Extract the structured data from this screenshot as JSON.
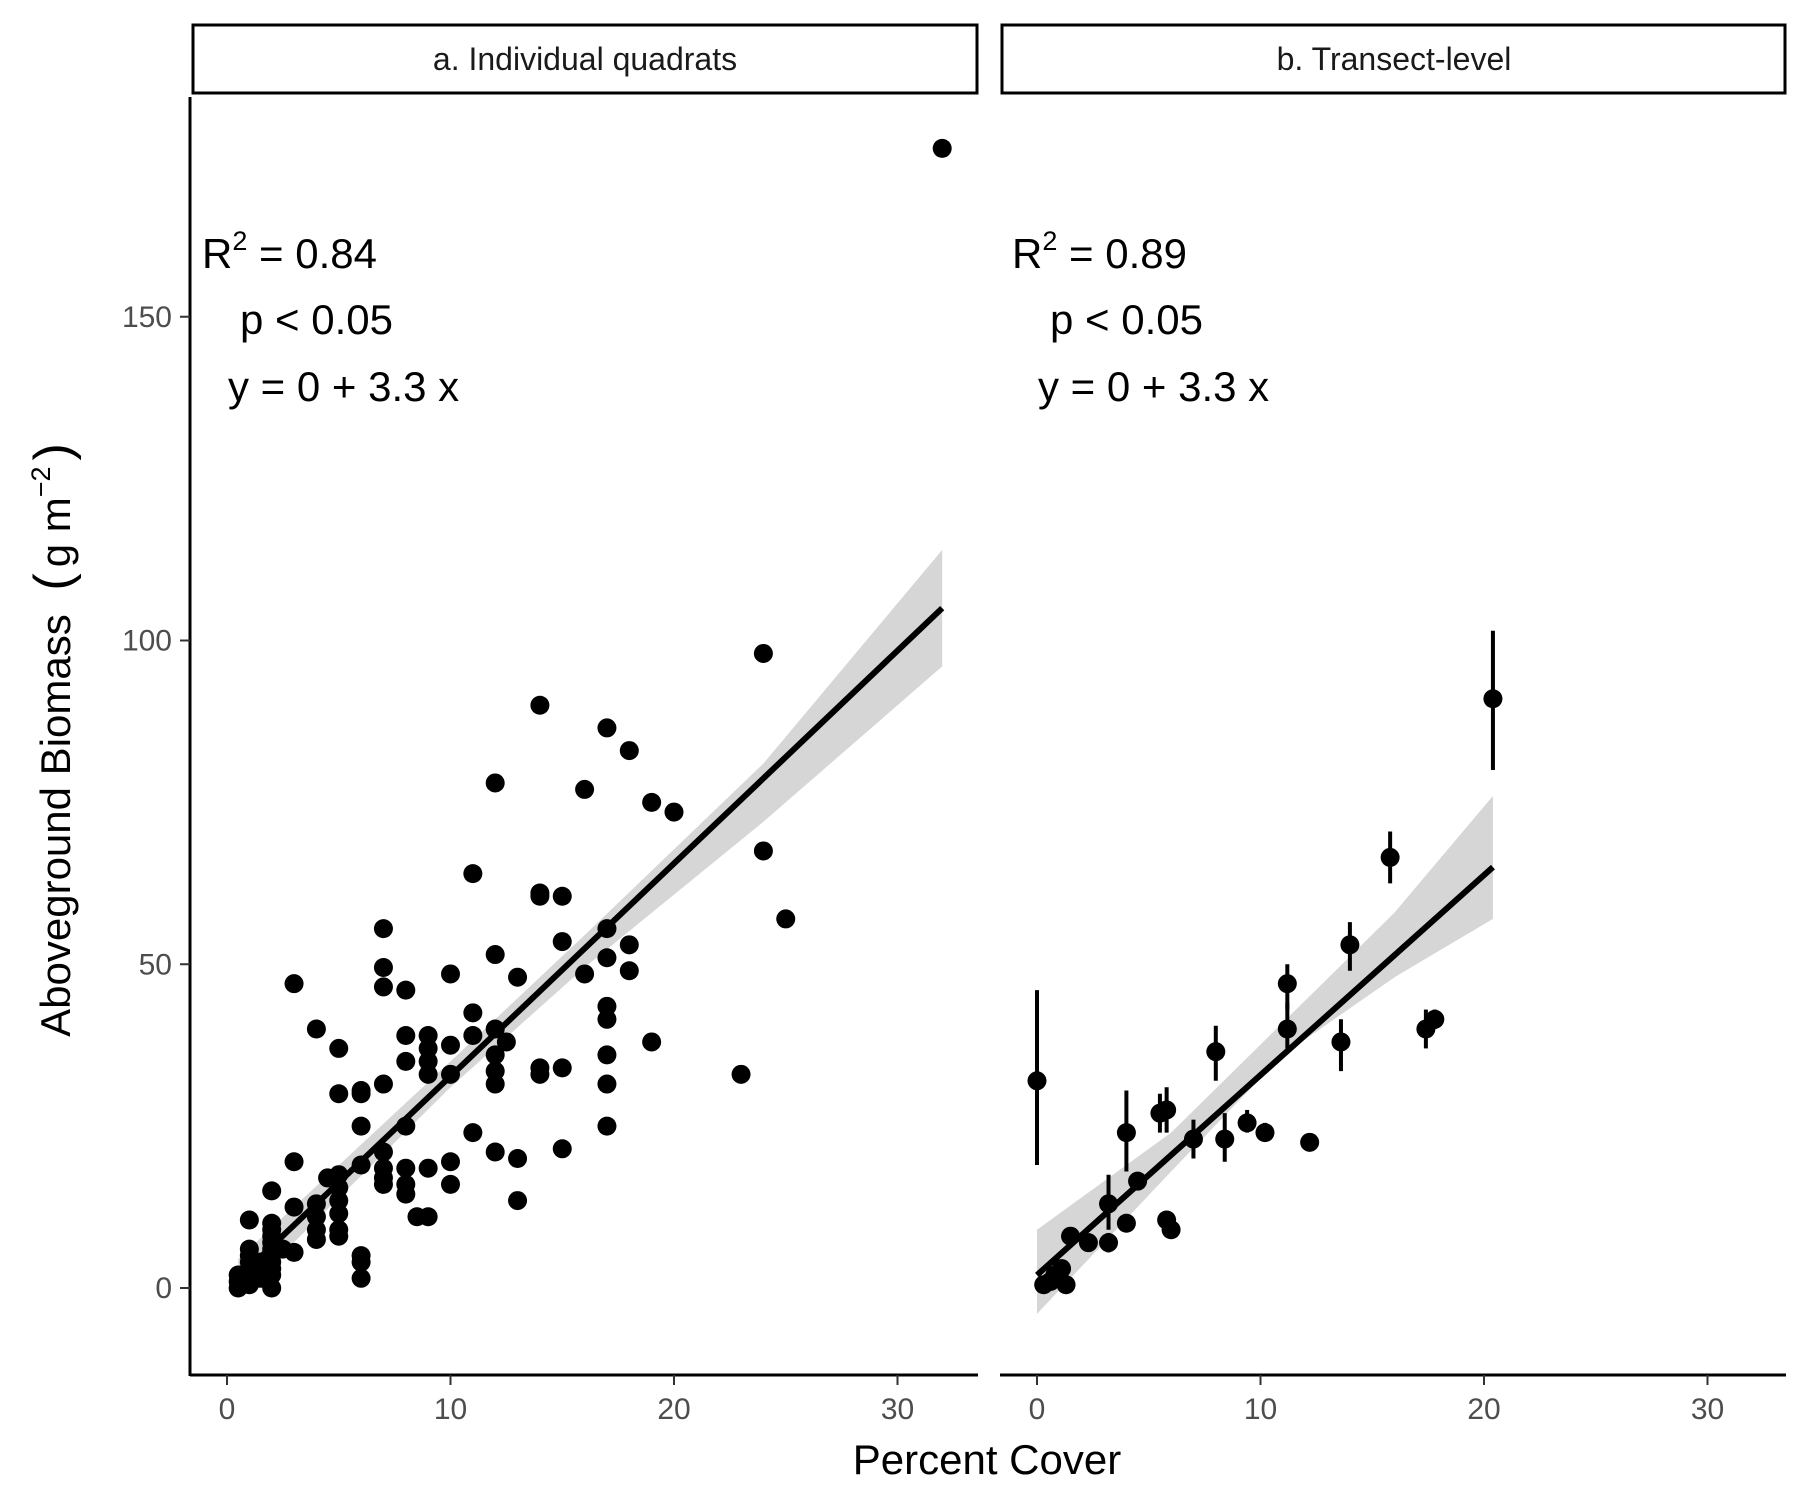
{
  "figure": {
    "xlabel": "Percent Cover",
    "ylabel_main": "Aboveground  Biomass",
    "ylabel_unit": "g  m",
    "ylabel_exp": "−2"
  },
  "chart_data": [
    {
      "type": "scatter",
      "panel_title": "a. Individual quadrats",
      "xlim": [
        -1.6,
        33.5
      ],
      "ylim": [
        -12,
        185
      ],
      "xticks": [
        0,
        10,
        20,
        30
      ],
      "yticks": [
        0,
        50,
        100,
        150
      ],
      "xtick_labels": [
        "0",
        "10",
        "20",
        "30"
      ],
      "ytick_labels": [
        "0",
        "50",
        "100",
        "150"
      ],
      "grid": false,
      "annotations": {
        "r2_prefix": "R",
        "r2_sup": "2",
        "r2_value": " =  0.84",
        "p_text": "p < 0.05",
        "eq_text": "y = 0 +  3.3 x"
      },
      "fit": {
        "x_start": 0.5,
        "x_end": 32,
        "y_start": 1.5,
        "y_end": 105
      },
      "ci": [
        {
          "x": 0.5,
          "lo": -1.5,
          "hi": 4.5
        },
        {
          "x": 10,
          "lo": 31,
          "hi": 35
        },
        {
          "x": 16,
          "lo": 49.5,
          "hi": 54.5
        },
        {
          "x": 24,
          "lo": 72,
          "hi": 81
        },
        {
          "x": 32,
          "lo": 96,
          "hi": 114
        }
      ],
      "points": [
        [
          0.5,
          0
        ],
        [
          0.5,
          1
        ],
        [
          0.5,
          2
        ],
        [
          1,
          0.5
        ],
        [
          1,
          1.5
        ],
        [
          1,
          3
        ],
        [
          1,
          4
        ],
        [
          1,
          5
        ],
        [
          1,
          6
        ],
        [
          1,
          10.5
        ],
        [
          1.2,
          2.5
        ],
        [
          1.5,
          1.5
        ],
        [
          1.5,
          4
        ],
        [
          2,
          0
        ],
        [
          2,
          2
        ],
        [
          2,
          3
        ],
        [
          2,
          4
        ],
        [
          2,
          5
        ],
        [
          2,
          6
        ],
        [
          2,
          7
        ],
        [
          2,
          8
        ],
        [
          2,
          9
        ],
        [
          2,
          10
        ],
        [
          2,
          15
        ],
        [
          2.5,
          6
        ],
        [
          3,
          5.5
        ],
        [
          3,
          12.5
        ],
        [
          3,
          19.5
        ],
        [
          3,
          47
        ],
        [
          4,
          7.5
        ],
        [
          4,
          9
        ],
        [
          4,
          11
        ],
        [
          4,
          13
        ],
        [
          4,
          40
        ],
        [
          4.5,
          17
        ],
        [
          5,
          8
        ],
        [
          5,
          9
        ],
        [
          5,
          11.5
        ],
        [
          5,
          13.5
        ],
        [
          5,
          15.5
        ],
        [
          5,
          17.5
        ],
        [
          5,
          30
        ],
        [
          5,
          37
        ],
        [
          6,
          1.5
        ],
        [
          6,
          4
        ],
        [
          6,
          5
        ],
        [
          6,
          19
        ],
        [
          6,
          25
        ],
        [
          6,
          30
        ],
        [
          6,
          30.5
        ],
        [
          7,
          16
        ],
        [
          7,
          17
        ],
        [
          7,
          18.5
        ],
        [
          7,
          21
        ],
        [
          7,
          31.5
        ],
        [
          7,
          46.5
        ],
        [
          7,
          49.5
        ],
        [
          7,
          55.5
        ],
        [
          8,
          14.5
        ],
        [
          8,
          16
        ],
        [
          8,
          18.5
        ],
        [
          8,
          25
        ],
        [
          8,
          35
        ],
        [
          8,
          39
        ],
        [
          8,
          46
        ],
        [
          8.5,
          11
        ],
        [
          9,
          11
        ],
        [
          9,
          18.5
        ],
        [
          9,
          33
        ],
        [
          9,
          35
        ],
        [
          9,
          37
        ],
        [
          9,
          39
        ],
        [
          10,
          16
        ],
        [
          10,
          19.5
        ],
        [
          10,
          33
        ],
        [
          10,
          37.5
        ],
        [
          10,
          48.5
        ],
        [
          11,
          24
        ],
        [
          11,
          39
        ],
        [
          11,
          42.5
        ],
        [
          11,
          64
        ],
        [
          12,
          21
        ],
        [
          12,
          31.5
        ],
        [
          12,
          33.5
        ],
        [
          12,
          36
        ],
        [
          12,
          40
        ],
        [
          12,
          51.5
        ],
        [
          12,
          78
        ],
        [
          12.5,
          38
        ],
        [
          13,
          13.5
        ],
        [
          13,
          20
        ],
        [
          13,
          48
        ],
        [
          14,
          33
        ],
        [
          14,
          34
        ],
        [
          14,
          60.5
        ],
        [
          14,
          61
        ],
        [
          14,
          90
        ],
        [
          15,
          21.5
        ],
        [
          15,
          34
        ],
        [
          15,
          53.5
        ],
        [
          15,
          60.5
        ],
        [
          16,
          48.5
        ],
        [
          16,
          77
        ],
        [
          17,
          25
        ],
        [
          17,
          31.5
        ],
        [
          17,
          36
        ],
        [
          17,
          41.5
        ],
        [
          17,
          43.5
        ],
        [
          17,
          51
        ],
        [
          17,
          55.5
        ],
        [
          17,
          86.5
        ],
        [
          18,
          49
        ],
        [
          18,
          53
        ],
        [
          18,
          83
        ],
        [
          19,
          38
        ],
        [
          19,
          75
        ],
        [
          20,
          73.5
        ],
        [
          23,
          33
        ],
        [
          24,
          67.5
        ],
        [
          24,
          98
        ],
        [
          25,
          57
        ],
        [
          32,
          176
        ]
      ]
    },
    {
      "type": "scatter",
      "panel_title": "b. Transect-level",
      "xlim": [
        -1.6,
        33.5
      ],
      "ylim": [
        -12,
        185
      ],
      "xticks": [
        0,
        10,
        20,
        30
      ],
      "yticks": [
        0,
        50,
        100,
        150
      ],
      "xtick_labels": [
        "0",
        "10",
        "20",
        "30"
      ],
      "grid": false,
      "annotations": {
        "r2_prefix": "R",
        "r2_sup": "2",
        "r2_value": " =  0.89",
        "p_text": "p < 0.05",
        "eq_text": "y = 0 +  3.3 x"
      },
      "fit": {
        "x_start": 0,
        "x_end": 20.4,
        "y_start": 2,
        "y_end": 65
      },
      "ci": [
        {
          "x": 0,
          "lo": -4,
          "hi": 9
        },
        {
          "x": 6,
          "lo": 18,
          "hi": 24
        },
        {
          "x": 11,
          "lo": 36,
          "hi": 41
        },
        {
          "x": 16,
          "lo": 48,
          "hi": 58
        },
        {
          "x": 20.4,
          "lo": 57,
          "hi": 76
        }
      ],
      "points": [
        {
          "x": 0,
          "y": 32,
          "lo": 19,
          "hi": 46
        },
        {
          "x": 0.3,
          "y": 0.5,
          "lo": 0.5,
          "hi": 0.5
        },
        {
          "x": 0.6,
          "y": 1,
          "lo": 1,
          "hi": 1
        },
        {
          "x": 0.8,
          "y": 2,
          "lo": 1.5,
          "hi": 2.5
        },
        {
          "x": 1,
          "y": 1.5,
          "lo": 1,
          "hi": 2
        },
        {
          "x": 1.1,
          "y": 3,
          "lo": 2.5,
          "hi": 3.5
        },
        {
          "x": 1.3,
          "y": 0.5,
          "lo": 0.5,
          "hi": 0.5
        },
        {
          "x": 1.5,
          "y": 8,
          "lo": 7.5,
          "hi": 8.5
        },
        {
          "x": 2.3,
          "y": 7,
          "lo": 6.5,
          "hi": 7.5
        },
        {
          "x": 3.2,
          "y": 7,
          "lo": 5.5,
          "hi": 8.5
        },
        {
          "x": 3.2,
          "y": 13,
          "lo": 9,
          "hi": 17.5
        },
        {
          "x": 4,
          "y": 10,
          "lo": 9.5,
          "hi": 10.5
        },
        {
          "x": 4,
          "y": 24,
          "lo": 18,
          "hi": 30.5
        },
        {
          "x": 4.5,
          "y": 16.5,
          "lo": 16,
          "hi": 17
        },
        {
          "x": 5.5,
          "y": 27,
          "lo": 24,
          "hi": 30
        },
        {
          "x": 5.8,
          "y": 10.5,
          "lo": 10,
          "hi": 11
        },
        {
          "x": 5.8,
          "y": 27.5,
          "lo": 24,
          "hi": 31
        },
        {
          "x": 6,
          "y": 9,
          "lo": 8.5,
          "hi": 9.5
        },
        {
          "x": 7,
          "y": 23,
          "lo": 20,
          "hi": 26
        },
        {
          "x": 8,
          "y": 36.5,
          "lo": 32,
          "hi": 40.5
        },
        {
          "x": 8.4,
          "y": 23,
          "lo": 19.5,
          "hi": 27
        },
        {
          "x": 9.4,
          "y": 25.5,
          "lo": 24,
          "hi": 27.5
        },
        {
          "x": 10.2,
          "y": 24,
          "lo": 23,
          "hi": 25.5
        },
        {
          "x": 11.2,
          "y": 40,
          "lo": 37,
          "hi": 44
        },
        {
          "x": 11.2,
          "y": 47,
          "lo": 43,
          "hi": 50
        },
        {
          "x": 12.2,
          "y": 22.5,
          "lo": 22,
          "hi": 23
        },
        {
          "x": 13.6,
          "y": 38,
          "lo": 33.5,
          "hi": 41.5
        },
        {
          "x": 14,
          "y": 53,
          "lo": 49,
          "hi": 56.5
        },
        {
          "x": 15.8,
          "y": 66.5,
          "lo": 62.5,
          "hi": 70.5
        },
        {
          "x": 17.4,
          "y": 40,
          "lo": 37,
          "hi": 43
        },
        {
          "x": 17.8,
          "y": 41.5,
          "lo": 40,
          "hi": 43
        },
        {
          "x": 20.4,
          "y": 91,
          "lo": 80,
          "hi": 101.5
        }
      ]
    }
  ]
}
